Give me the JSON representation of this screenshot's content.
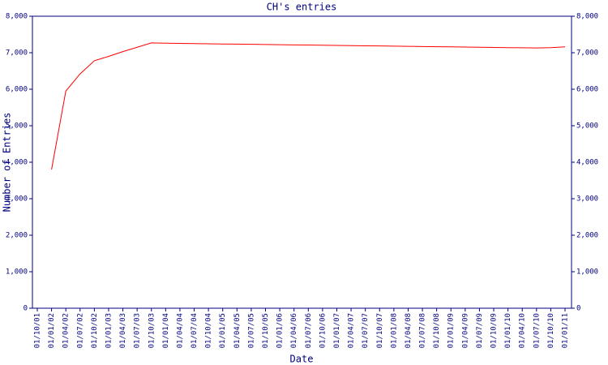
{
  "chart_data": {
    "type": "line",
    "title": "CH's entries",
    "x_label": "Date",
    "y_label": "Number of Entries",
    "categories": [
      "01/10/01",
      "01/01/02",
      "01/04/02",
      "01/07/02",
      "01/10/02",
      "01/01/03",
      "01/04/03",
      "01/07/03",
      "01/10/03",
      "01/01/04",
      "01/04/04",
      "01/07/04",
      "01/10/04",
      "01/01/05",
      "01/04/05",
      "01/07/05",
      "01/10/05",
      "01/01/06",
      "01/04/06",
      "01/07/06",
      "01/10/06",
      "01/01/07",
      "01/04/07",
      "01/07/07",
      "01/10/07",
      "01/01/08",
      "01/04/08",
      "01/07/08",
      "01/10/08",
      "01/01/09",
      "01/04/09",
      "01/07/09",
      "01/10/09",
      "01/01/10",
      "01/04/10",
      "01/07/10",
      "01/10/10",
      "01/01/11"
    ],
    "series": [
      {
        "color": "#ff0000",
        "values": [
          null,
          3800,
          5950,
          6420,
          6780,
          6900,
          7030,
          7150,
          7270,
          7260,
          7255,
          7250,
          7245,
          7240,
          7235,
          7230,
          7225,
          7220,
          7215,
          7210,
          7205,
          7200,
          7195,
          7190,
          7185,
          7180,
          7175,
          7170,
          7165,
          7160,
          7155,
          7150,
          7145,
          7140,
          7135,
          7130,
          7140,
          7160
        ]
      }
    ],
    "ylim": [
      0,
      8000
    ],
    "yticks": [
      0,
      {
        "value": 1000,
        "label": "1,000"
      },
      {
        "value": 2000,
        "label": "2,000"
      },
      {
        "value": 3000,
        "label": "3,000"
      },
      {
        "value": 4000,
        "label": "4,000"
      },
      {
        "value": 5000,
        "label": "5,000"
      },
      {
        "value": 6000,
        "label": "6,000"
      },
      {
        "value": 7000,
        "label": "7,000"
      },
      {
        "value": 8000,
        "label": "8,000"
      }
    ],
    "y2lim": [
      0,
      8000
    ],
    "y2ticks": [
      0,
      {
        "value": 1000,
        "label": "1,000"
      },
      {
        "value": 2000,
        "label": "2,000"
      },
      {
        "value": 3000,
        "label": "3,000"
      },
      {
        "value": 4000,
        "label": "4,000"
      },
      {
        "value": 5000,
        "label": "5,000"
      },
      {
        "value": 6000,
        "label": "6,000"
      },
      {
        "value": 7000,
        "label": "7,000"
      },
      {
        "value": 8000,
        "label": "8,000"
      }
    ],
    "axis_color": "#000080"
  }
}
